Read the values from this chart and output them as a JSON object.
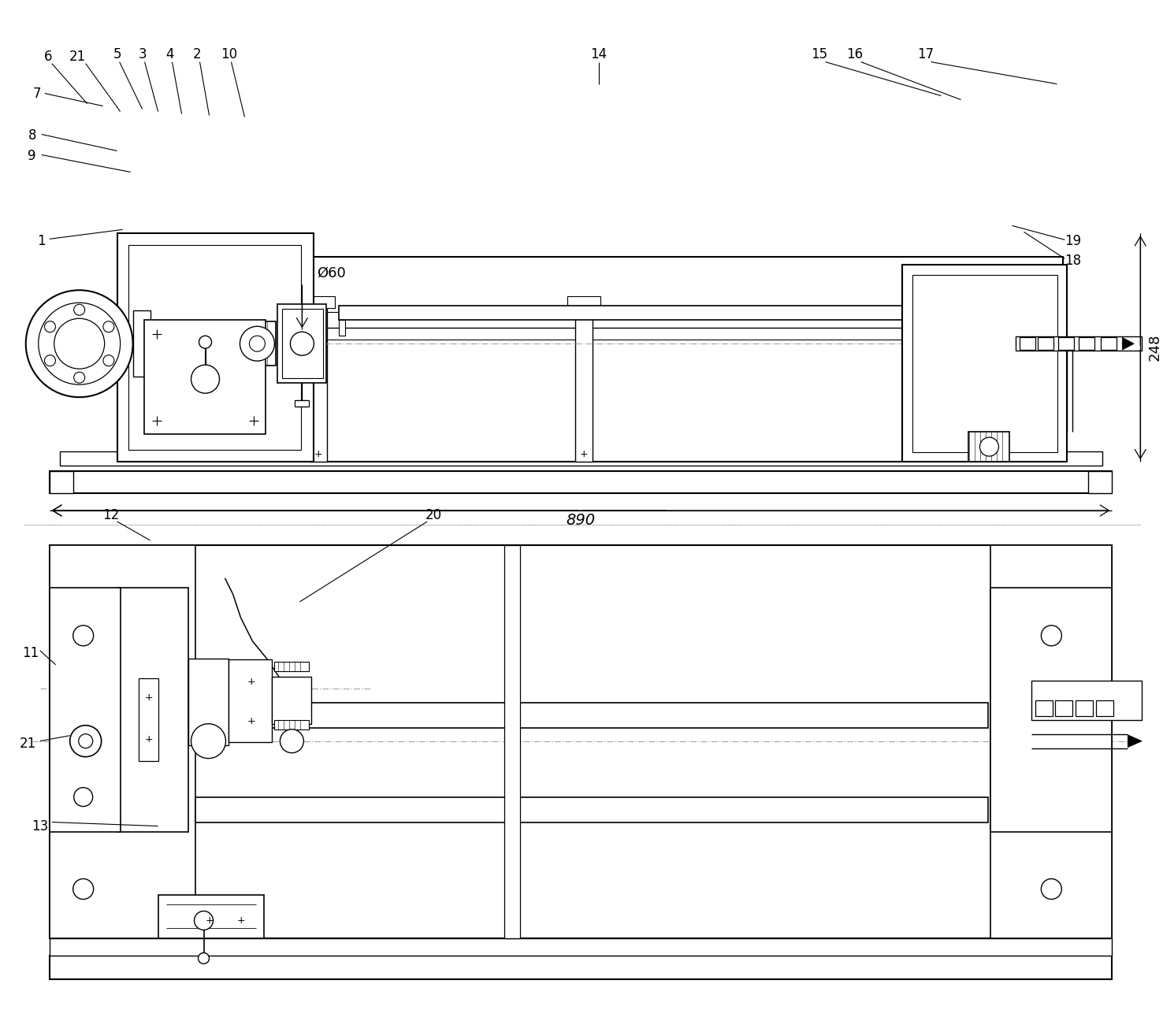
{
  "bg": "#ffffff",
  "lc": "#000000",
  "dc": "#aaaaaa",
  "fig_w": 14.76,
  "fig_h": 12.96,
  "dpi": 100
}
